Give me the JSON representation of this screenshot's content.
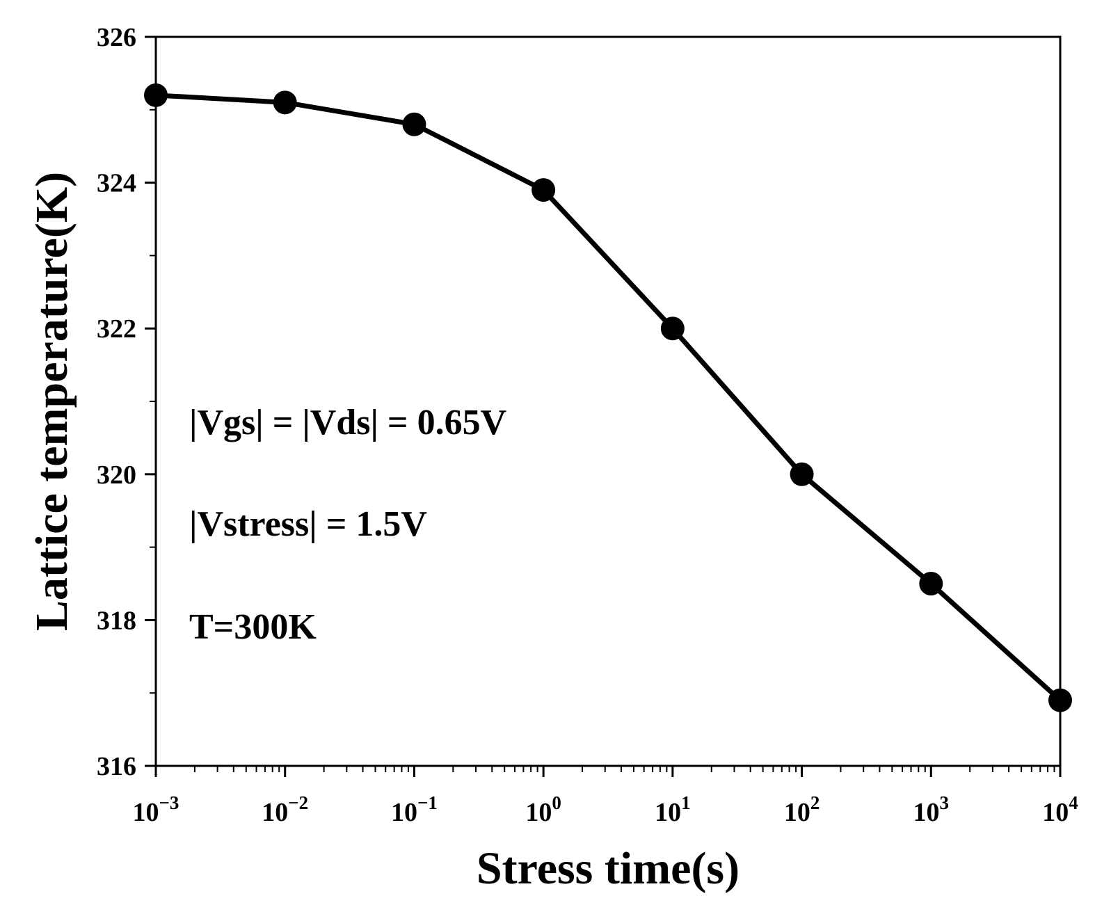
{
  "chart_data": {
    "type": "line",
    "x_scale": "log",
    "x": [
      0.001,
      0.01,
      0.1,
      1,
      10,
      100,
      1000,
      10000
    ],
    "y": [
      325.2,
      325.1,
      324.8,
      323.9,
      322.0,
      320.0,
      318.5,
      316.9
    ],
    "xlim": [
      0.001,
      10000
    ],
    "ylim": [
      316,
      326
    ],
    "x_ticks": [
      {
        "base": "10",
        "exp": "−3",
        "value": 0.001
      },
      {
        "base": "10",
        "exp": "−2",
        "value": 0.01
      },
      {
        "base": "10",
        "exp": "−1",
        "value": 0.1
      },
      {
        "base": "10",
        "exp": "0",
        "value": 1
      },
      {
        "base": "10",
        "exp": "1",
        "value": 10
      },
      {
        "base": "10",
        "exp": "2",
        "value": 100
      },
      {
        "base": "10",
        "exp": "3",
        "value": 1000
      },
      {
        "base": "10",
        "exp": "4",
        "value": 10000
      }
    ],
    "y_ticks": [
      "316",
      "318",
      "320",
      "322",
      "324",
      "326"
    ],
    "xlabel": "Stress time(s)",
    "ylabel": "Lattice temperature(K)",
    "annotations": [
      "|Vgs| = |Vds| = 0.65V",
      "|Vstress| = 1.5V",
      "T=300K"
    ],
    "grid": false,
    "line_color": "#000000",
    "marker_color": "#000000"
  }
}
